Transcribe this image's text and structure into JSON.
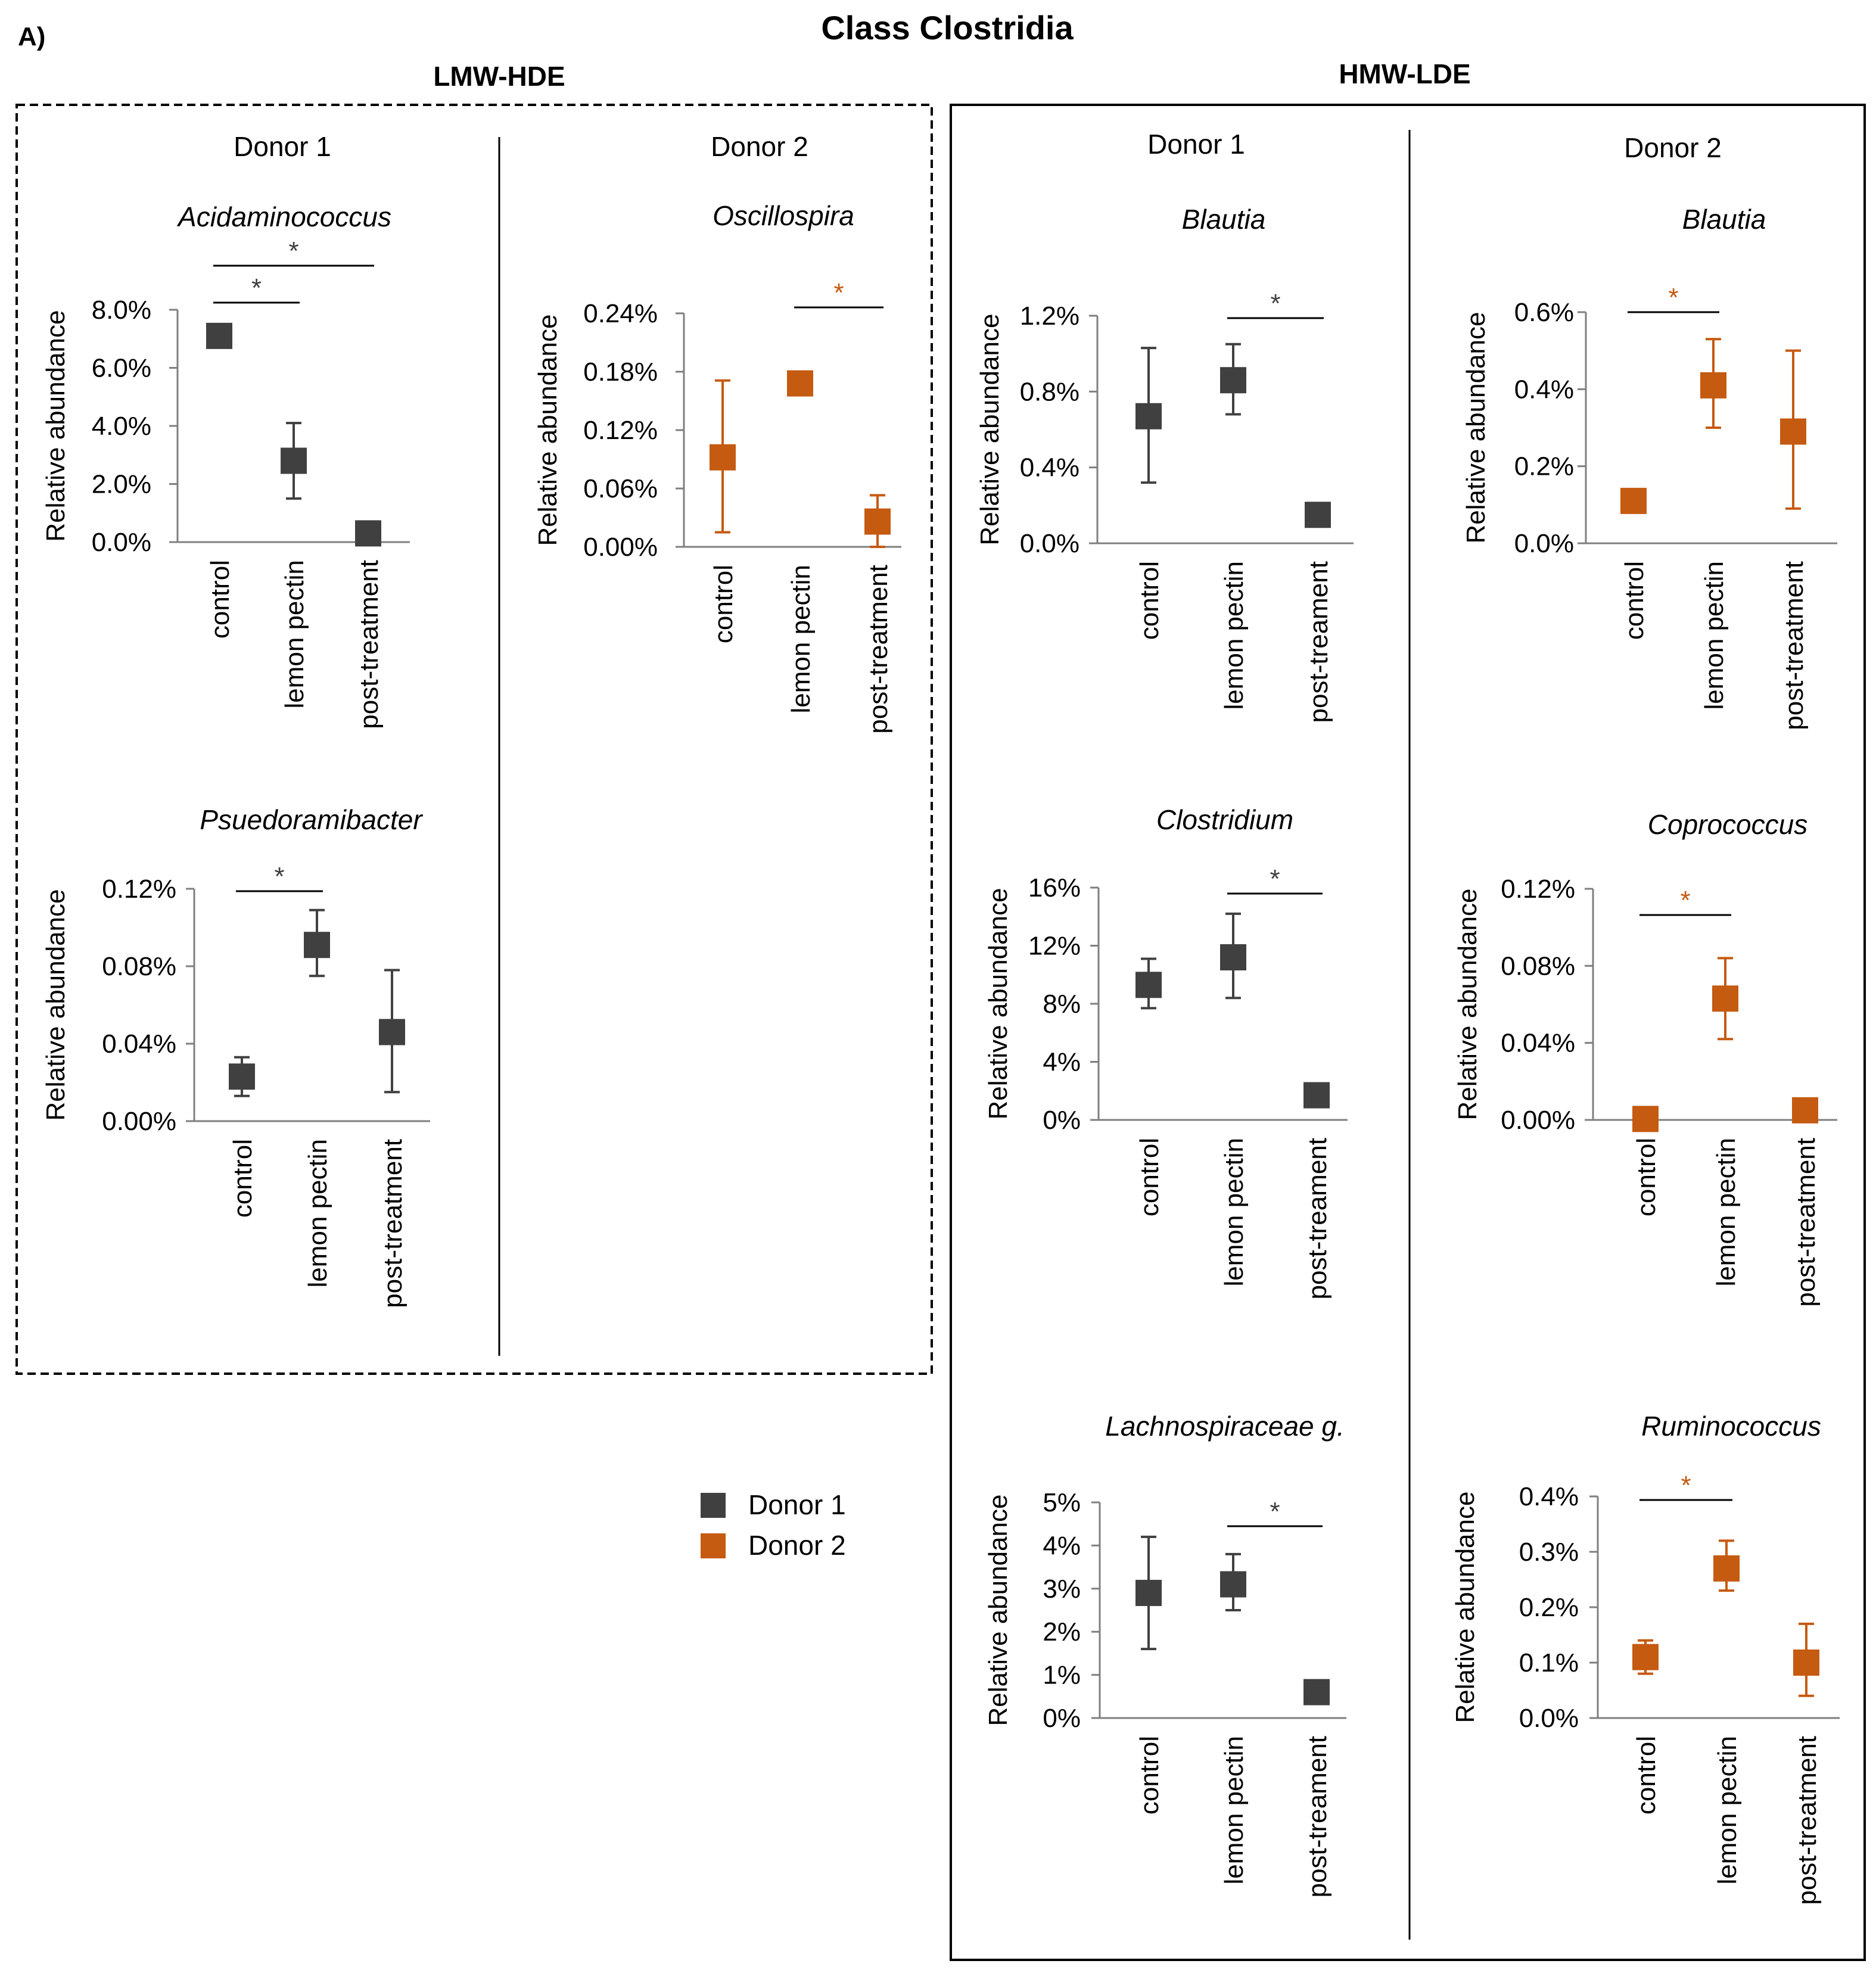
{
  "panel_label": "A)",
  "title": "Class Clostridia",
  "groups": {
    "lmw": "LMW-HDE",
    "hmw": "HMW-LDE"
  },
  "donor_headers": {
    "lmw_d1": "Donor 1",
    "lmw_d2": "Donor 2",
    "hmw_d1": "Donor 1",
    "hmw_d2": "Donor 2"
  },
  "legend": [
    {
      "label": "Donor 1",
      "color": "#404040"
    },
    {
      "label": "Donor 2",
      "color": "#C55A11"
    }
  ],
  "colors": {
    "donor1": "#404040",
    "donor2": "#C55A11",
    "axis": "#7f7f7f"
  },
  "chart_data": [
    {
      "id": "acidaminococcus",
      "type": "scatter",
      "title": "Acidaminococcus",
      "donor": "Donor 1",
      "group": "LMW-HDE",
      "ylabel": "Relative abundance",
      "categories": [
        "control",
        "lemon pectin",
        "post-treatment"
      ],
      "values": [
        7.1,
        2.8,
        0.3
      ],
      "err_low": [
        7.1,
        1.5,
        0.3
      ],
      "err_high": [
        7.1,
        4.1,
        0.3
      ],
      "ylim": [
        0,
        8
      ],
      "yticks": [
        0,
        2,
        4,
        6,
        8
      ],
      "tick_labels": [
        "0.0%",
        "2.0%",
        "4.0%",
        "6.0%",
        "8.0%"
      ],
      "significance": [
        {
          "from": 0,
          "to": 1,
          "label": "*"
        },
        {
          "from": 0,
          "to": 2,
          "label": "*"
        }
      ]
    },
    {
      "id": "oscillospira",
      "type": "scatter",
      "title": "Oscillospira",
      "donor": "Donor 2",
      "group": "LMW-HDE",
      "ylabel": "Relative abundance",
      "categories": [
        "control",
        "lemon pectin",
        "post-treatment"
      ],
      "values": [
        0.092,
        0.168,
        0.026
      ],
      "err_low": [
        0.015,
        0.168,
        0.0
      ],
      "err_high": [
        0.171,
        0.168,
        0.053
      ],
      "ylim": [
        0,
        0.24
      ],
      "yticks": [
        0,
        0.06,
        0.12,
        0.18,
        0.24
      ],
      "tick_labels": [
        "0.00%",
        "0.06%",
        "0.12%",
        "0.18%",
        "0.24%"
      ],
      "significance": [
        {
          "from": 1,
          "to": 2,
          "label": "*"
        }
      ]
    },
    {
      "id": "psuedoramibacter",
      "type": "scatter",
      "title": "Psuedoramibacter",
      "donor": "Donor 1",
      "group": "LMW-HDE",
      "ylabel": "Relative abundance",
      "categories": [
        "control",
        "lemon pectin",
        "post-treatment"
      ],
      "values": [
        0.023,
        0.091,
        0.046
      ],
      "err_low": [
        0.013,
        0.075,
        0.015
      ],
      "err_high": [
        0.033,
        0.109,
        0.078
      ],
      "ylim": [
        0,
        0.12
      ],
      "yticks": [
        0,
        0.04,
        0.08,
        0.12
      ],
      "tick_labels": [
        "0.00%",
        "0.04%",
        "0.08%",
        "0.12%"
      ],
      "significance": [
        {
          "from": 0,
          "to": 1,
          "label": "*"
        }
      ]
    },
    {
      "id": "blautia_d1",
      "type": "scatter",
      "title": "Blautia",
      "donor": "Donor 1",
      "group": "HMW-LDE",
      "ylabel": "Relative abundance",
      "categories": [
        "control",
        "lemon pectin",
        "post-treament"
      ],
      "values": [
        0.67,
        0.86,
        0.15
      ],
      "err_low": [
        0.32,
        0.68,
        0.1
      ],
      "err_high": [
        1.03,
        1.05,
        0.2
      ],
      "ylim": [
        0,
        1.2
      ],
      "yticks": [
        0,
        0.4,
        0.8,
        1.2
      ],
      "tick_labels": [
        "0.0%",
        "0.4%",
        "0.8%",
        "1.2%"
      ],
      "significance": [
        {
          "from": 1,
          "to": 2,
          "label": "*"
        }
      ]
    },
    {
      "id": "blautia_d2",
      "type": "scatter",
      "title": "Blautia",
      "donor": "Donor 2",
      "group": "HMW-LDE",
      "ylabel": "Relative abundance",
      "categories": [
        "control",
        "lemon pectin",
        "post-treatment"
      ],
      "values": [
        0.11,
        0.41,
        0.29
      ],
      "err_low": [
        0.11,
        0.3,
        0.09
      ],
      "err_high": [
        0.11,
        0.53,
        0.5
      ],
      "ylim": [
        0,
        0.6
      ],
      "yticks": [
        0,
        0.2,
        0.4,
        0.6
      ],
      "tick_labels": [
        "0.0%",
        "0.2%",
        "0.4%",
        "0.6%"
      ],
      "significance": [
        {
          "from": 0,
          "to": 1,
          "label": "*"
        }
      ]
    },
    {
      "id": "clostridium",
      "type": "scatter",
      "title": "Clostridium",
      "donor": "Donor 1",
      "group": "HMW-LDE",
      "ylabel": "Relative abundance",
      "categories": [
        "control",
        "lemon pectin",
        "post-treament"
      ],
      "values": [
        9.3,
        11.2,
        1.7
      ],
      "err_low": [
        7.7,
        8.4,
        1.7
      ],
      "err_high": [
        11.1,
        14.2,
        1.7
      ],
      "ylim": [
        0,
        16
      ],
      "yticks": [
        0,
        4,
        8,
        12,
        16
      ],
      "tick_labels": [
        "0%",
        "4%",
        "8%",
        "12%",
        "16%"
      ],
      "significance": [
        {
          "from": 1,
          "to": 2,
          "label": "*"
        }
      ]
    },
    {
      "id": "coprococcus",
      "type": "scatter",
      "title": "Coprococcus",
      "donor": "Donor 2",
      "group": "HMW-LDE",
      "ylabel": "Relative abundance",
      "categories": [
        "control",
        "lemon pectin",
        "post-treatment"
      ],
      "values": [
        0.0005,
        0.063,
        0.005
      ],
      "err_low": [
        0.0005,
        0.042,
        0.005
      ],
      "err_high": [
        0.0005,
        0.084,
        0.005
      ],
      "ylim": [
        0,
        0.12
      ],
      "yticks": [
        0,
        0.04,
        0.08,
        0.12
      ],
      "tick_labels": [
        "0.00%",
        "0.04%",
        "0.08%",
        "0.12%"
      ],
      "significance": [
        {
          "from": 0,
          "to": 1,
          "label": "*"
        }
      ]
    },
    {
      "id": "lachnospiraceae",
      "type": "scatter",
      "title": "Lachnospiraceae g.",
      "donor": "Donor 1",
      "group": "HMW-LDE",
      "ylabel": "Relative abundance",
      "categories": [
        "control",
        "lemon pectin",
        "post-treament"
      ],
      "values": [
        2.9,
        3.1,
        0.6
      ],
      "err_low": [
        1.6,
        2.5,
        0.6
      ],
      "err_high": [
        4.2,
        3.8,
        0.6
      ],
      "ylim": [
        0,
        5
      ],
      "yticks": [
        0,
        1,
        2,
        3,
        4,
        5
      ],
      "tick_labels": [
        "0%",
        "1%",
        "2%",
        "3%",
        "4%",
        "5%"
      ],
      "significance": [
        {
          "from": 1,
          "to": 2,
          "label": "*"
        }
      ]
    },
    {
      "id": "ruminococcus",
      "type": "scatter",
      "title": "Ruminococcus",
      "donor": "Donor 2",
      "group": "HMW-LDE",
      "ylabel": "Relative abundance",
      "categories": [
        "control",
        "lemon pectin",
        "post-treatment"
      ],
      "values": [
        0.11,
        0.27,
        0.1
      ],
      "err_low": [
        0.08,
        0.23,
        0.04
      ],
      "err_high": [
        0.14,
        0.32,
        0.17
      ],
      "ylim": [
        0,
        0.4
      ],
      "yticks": [
        0,
        0.1,
        0.2,
        0.3,
        0.4
      ],
      "tick_labels": [
        "0.0%",
        "0.1%",
        "0.2%",
        "0.3%",
        "0.4%"
      ],
      "significance": [
        {
          "from": 0,
          "to": 1,
          "label": "*"
        }
      ]
    }
  ]
}
